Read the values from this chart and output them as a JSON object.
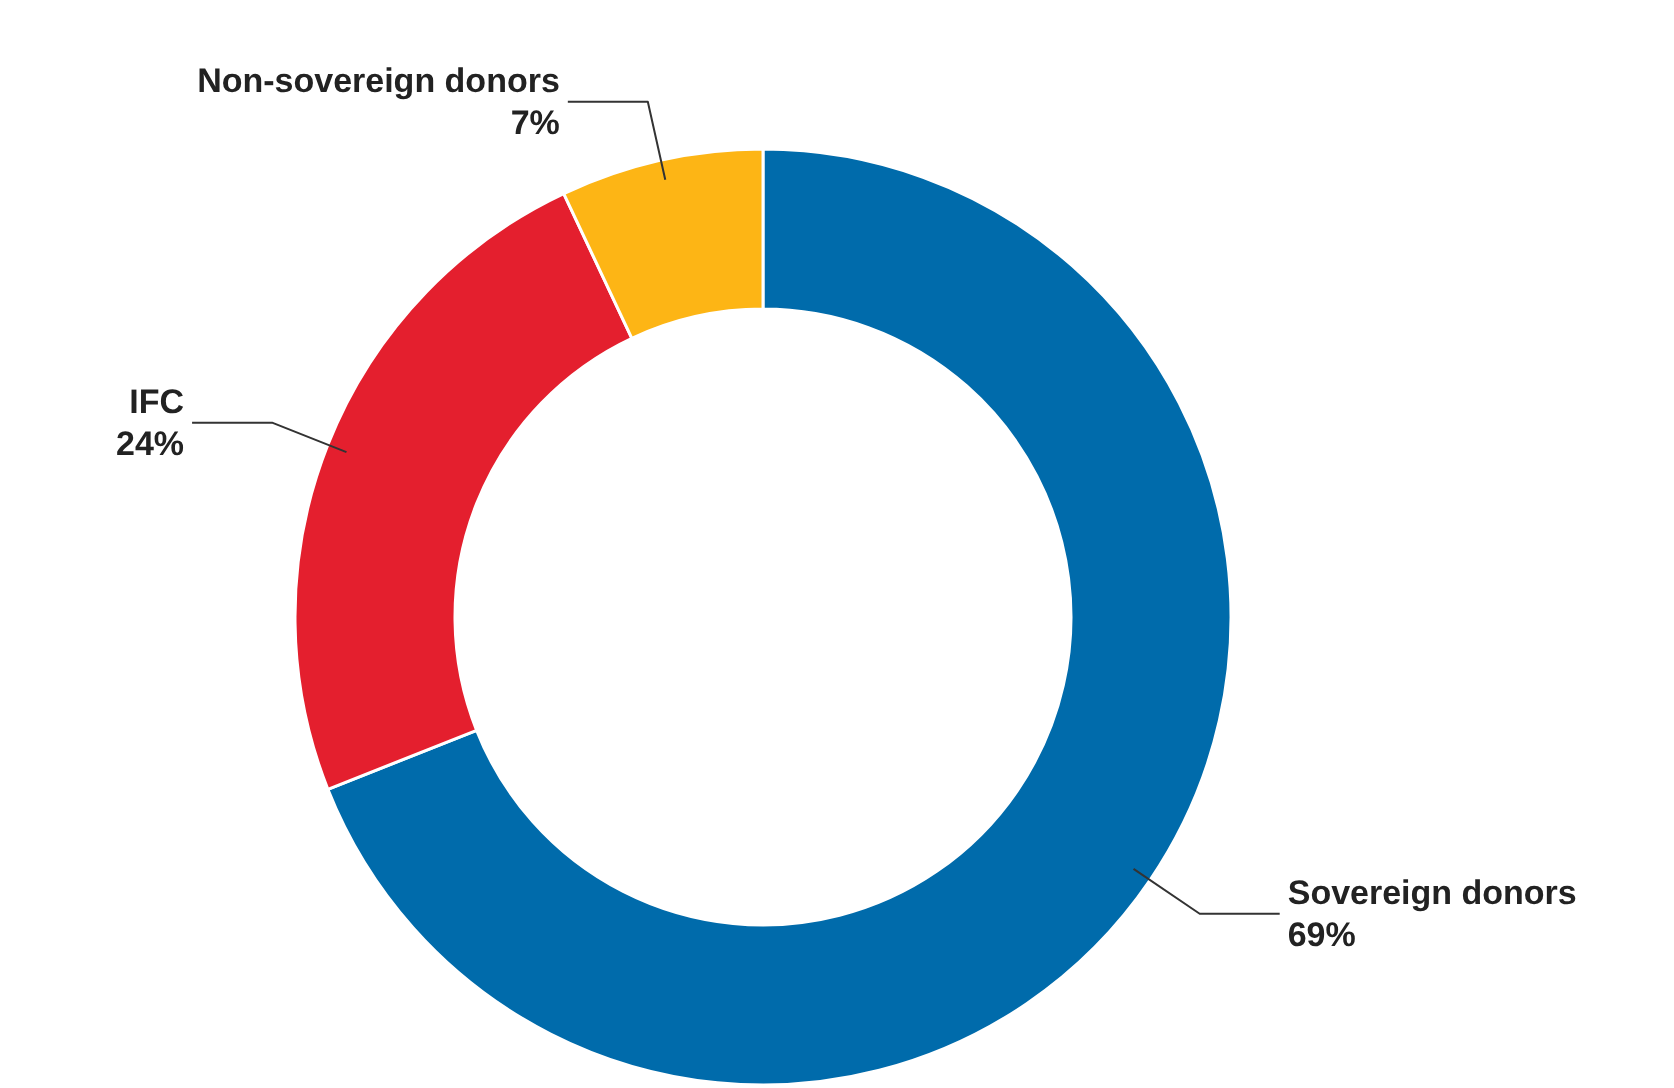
{
  "chart_data": {
    "type": "donut",
    "categories": [
      "Sovereign donors",
      "IFC",
      "Non-sovereign donors"
    ],
    "values": [
      69,
      24,
      7
    ],
    "value_labels": [
      "69%",
      "24%",
      "7%"
    ],
    "colors": [
      "#006bab",
      "#e41f2e",
      "#fdb515"
    ]
  }
}
